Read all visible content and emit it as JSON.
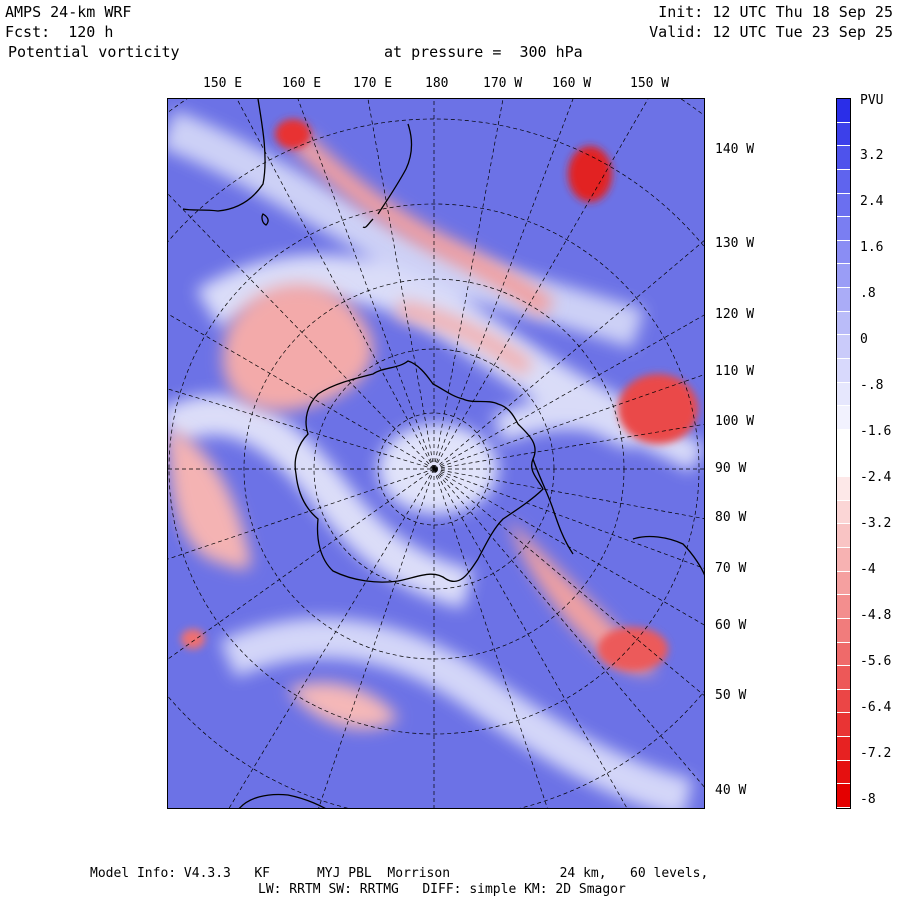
{
  "header": {
    "model": "AMPS 24-km WRF",
    "forecast": "Fcst:  120 h",
    "variable": "Potential vorticity",
    "level": "at pressure =  300 hPa",
    "init": "Init: 12 UTC Thu 18 Sep 25",
    "valid": "Valid: 12 UTC Tue 23 Sep 25"
  },
  "map": {
    "top_longitudes": [
      "150 E",
      "160 E",
      "170 E",
      "180",
      "170 W",
      "160 W",
      "150 W"
    ],
    "right_longitudes": [
      "140 W",
      "130 W",
      "120 W",
      "110 W",
      "100 W",
      "90 W",
      "80 W",
      "70 W",
      "60 W",
      "50 W",
      "40 W"
    ]
  },
  "colorbar": {
    "unit": "PVU",
    "labels": [
      "3.2",
      "2.4",
      "1.6",
      ".8",
      "0",
      "-.8",
      "-1.6",
      "-2.4",
      "-3.2",
      "-4",
      "-4.8",
      "-5.6",
      "-6.4",
      "-7.2",
      "-8"
    ],
    "colors": [
      "#2a2ee8",
      "#3c40ea",
      "#4e53ec",
      "#5f64ee",
      "#6b6ff0",
      "#7a7ef2",
      "#8a8df4",
      "#9a9df6",
      "#aaacf7",
      "#babcf9",
      "#cacbfa",
      "#d8d9fc",
      "#e6e7fd",
      "#f2f2fe",
      "#ffffff",
      "#ffffff",
      "#fde8e8",
      "#fbd6d6",
      "#f9c4c4",
      "#f7b2b2",
      "#f5a0a0",
      "#f38e8e",
      "#f17c7c",
      "#ef6a6a",
      "#ed5858",
      "#eb4646",
      "#e93434",
      "#e72222",
      "#e51010",
      "#e40000"
    ]
  },
  "footer": {
    "line1": "Model Info: V4.3.3   KF      MYJ PBL  Morrison              24 km,   60 levels,",
    "line2": "LW: RRTM SW: RRTMG   DIFF: simple KM: 2D Smagor"
  }
}
